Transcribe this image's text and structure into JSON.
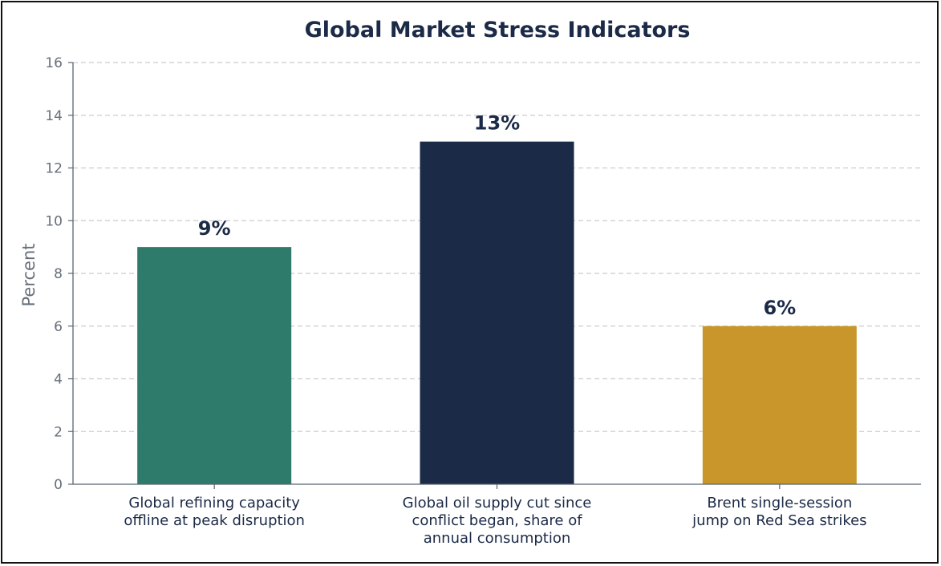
{
  "chart_data": {
    "type": "bar",
    "title": "Global Market Stress Indicators",
    "xlabel": "",
    "ylabel": "Percent",
    "ylim": [
      0,
      16
    ],
    "yticks": [
      0,
      2,
      4,
      6,
      8,
      10,
      12,
      14,
      16
    ],
    "grid": "horizontal-dashed",
    "legend": "none",
    "categories": [
      [
        "Global refining capacity",
        "offline at peak disruption"
      ],
      [
        "Global oil supply cut since",
        "conflict began, share of",
        "annual consumption"
      ],
      [
        "Brent single-session",
        "jump on Red Sea strikes"
      ]
    ],
    "values": [
      9,
      13,
      6
    ],
    "data_labels": [
      "9%",
      "13%",
      "6%"
    ],
    "colors": [
      "#2e7b6c",
      "#1b2a47",
      "#c9962c"
    ]
  }
}
